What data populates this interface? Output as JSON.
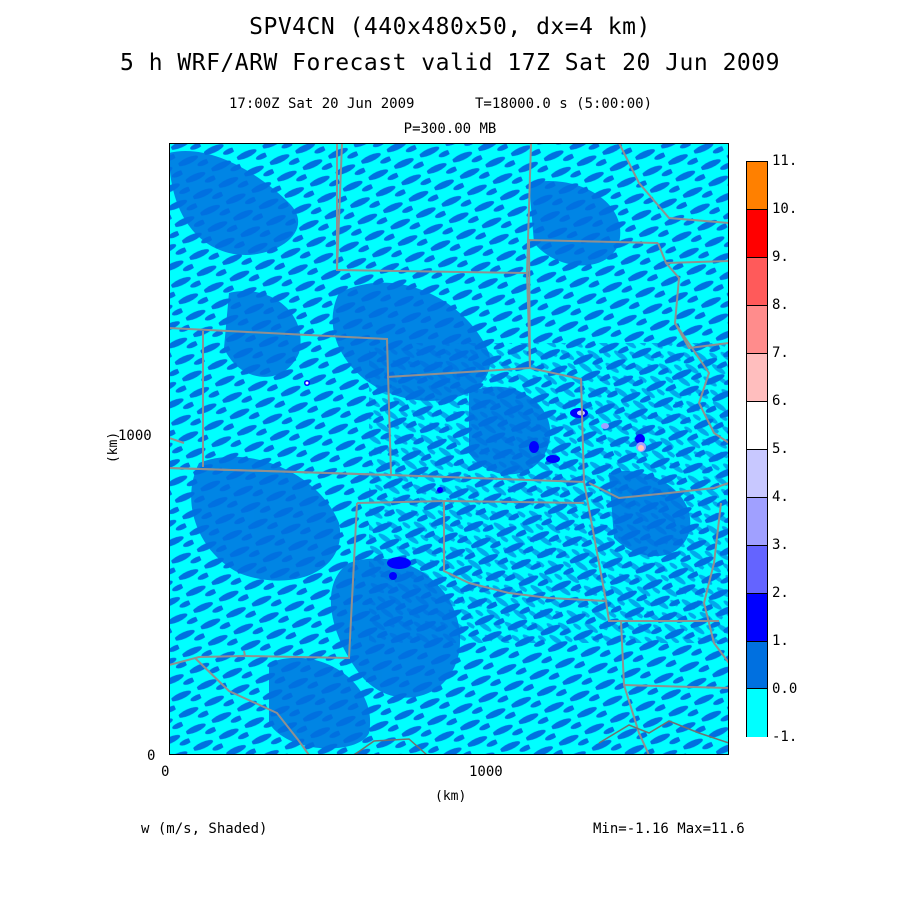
{
  "title": {
    "line1": "SPV4CN (440x480x50, dx=4 km)",
    "line2": "5 h WRF/ARW Forecast valid 17Z Sat 20 Jun 2009"
  },
  "subtitle": {
    "time": "17:00Z Sat 20 Jun 2009",
    "elapsed": "T=18000.0 s (5:00:00)",
    "level": "P=300.00 MB"
  },
  "axes": {
    "xlabel": "(km)",
    "ylabel": "(km)",
    "x_ticks": [
      "0",
      "1000"
    ],
    "y_ticks": [
      "0",
      "1000"
    ]
  },
  "colorbar": {
    "labels": [
      "11.",
      "10.",
      "9.",
      "8.",
      "7.",
      "6.",
      "5.",
      "4.",
      "3.",
      "2.",
      "1.",
      "0.0",
      "-1."
    ],
    "colors": [
      "#ff8000",
      "#ff0000",
      "#ff5a5a",
      "#ff8c8c",
      "#ffbebe",
      "#ffffff",
      "#c8c8ff",
      "#a0a0ff",
      "#6464ff",
      "#0000ff",
      "#0070e0",
      "#00ffff"
    ]
  },
  "field_colors": {
    "background": "#00ffff",
    "zero_to_one": "#0070e0",
    "one_to_two": "#0000ff",
    "three_to_four": "#a0a0ff",
    "four_to_five": "#c8c8ff",
    "six_to_seven": "#ffbebe",
    "borders": "#909090"
  },
  "footer": {
    "variable": "w (m/s, Shaded)",
    "range": "Min=-1.16 Max=11.6"
  }
}
